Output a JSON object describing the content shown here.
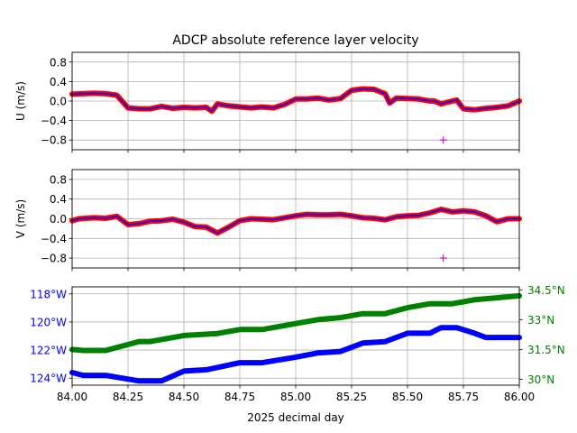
{
  "chart_data": [
    {
      "type": "line",
      "panel": "top",
      "title": "ADCP absolute reference layer velocity",
      "ylabel": "U (m/s)",
      "xlim": [
        84.0,
        86.0
      ],
      "ylim": [
        -1.0,
        1.0
      ],
      "yticks": [
        "0.8",
        "0.4",
        "0.0",
        "−0.4",
        "−0.8"
      ],
      "ytick_values": [
        0.8,
        0.4,
        0.0,
        -0.4,
        -0.8
      ],
      "grid": true,
      "series": [
        {
          "color": "#ff0000",
          "marker": "dot",
          "x": [
            84.0,
            84.05,
            84.1,
            84.15,
            84.2,
            84.25,
            84.3,
            84.35,
            84.4,
            84.45,
            84.5,
            84.55,
            84.6,
            84.625,
            84.65,
            84.7,
            84.75,
            84.8,
            84.85,
            84.9,
            84.95,
            85.0,
            85.05,
            85.1,
            85.15,
            85.2,
            85.25,
            85.3,
            85.35,
            85.4,
            85.42,
            85.45,
            85.5,
            85.55,
            85.6,
            85.62,
            85.65,
            85.7,
            85.72,
            85.75,
            85.8,
            85.85,
            85.9,
            85.95,
            86.0
          ],
          "y": [
            0.14,
            0.15,
            0.16,
            0.15,
            0.12,
            -0.14,
            -0.16,
            -0.16,
            -0.11,
            -0.15,
            -0.13,
            -0.14,
            -0.13,
            -0.21,
            -0.06,
            -0.1,
            -0.12,
            -0.14,
            -0.12,
            -0.14,
            -0.07,
            0.04,
            0.04,
            0.06,
            0.02,
            0.05,
            0.22,
            0.25,
            0.24,
            0.15,
            -0.04,
            0.06,
            0.05,
            0.04,
            0.0,
            0.0,
            -0.06,
            0.0,
            0.02,
            -0.16,
            -0.18,
            -0.15,
            -0.13,
            -0.1,
            0.0
          ]
        },
        {
          "color": "#0000ff",
          "marker": "line",
          "x": [
            84.0,
            84.05,
            84.1,
            84.15,
            84.2,
            84.25,
            84.3,
            84.35,
            84.4,
            84.45,
            84.5,
            84.55,
            84.6,
            84.625,
            84.65,
            84.7,
            84.75,
            84.8,
            84.85,
            84.9,
            84.95,
            85.0,
            85.05,
            85.1,
            85.15,
            85.2,
            85.25,
            85.3,
            85.35,
            85.4,
            85.42,
            85.45,
            85.5,
            85.55,
            85.6,
            85.62,
            85.65,
            85.7,
            85.72,
            85.75,
            85.8,
            85.85,
            85.9,
            85.95,
            86.0
          ],
          "y": [
            0.14,
            0.15,
            0.16,
            0.15,
            0.12,
            -0.14,
            -0.16,
            -0.16,
            -0.11,
            -0.15,
            -0.13,
            -0.14,
            -0.13,
            -0.21,
            -0.06,
            -0.1,
            -0.12,
            -0.14,
            -0.12,
            -0.14,
            -0.07,
            0.04,
            0.04,
            0.06,
            0.02,
            0.05,
            0.22,
            0.25,
            0.24,
            0.15,
            -0.04,
            0.06,
            0.05,
            0.04,
            0.0,
            0.0,
            -0.06,
            0.0,
            0.02,
            -0.16,
            -0.18,
            -0.15,
            -0.13,
            -0.1,
            0.0
          ]
        },
        {
          "color": "#cc00cc",
          "marker": "plus",
          "x": [
            85.66
          ],
          "y": [
            -0.8
          ]
        }
      ]
    },
    {
      "type": "line",
      "panel": "middle",
      "ylabel": "V (m/s)",
      "xlim": [
        84.0,
        86.0
      ],
      "ylim": [
        -1.0,
        1.0
      ],
      "yticks": [
        "0.8",
        "0.4",
        "0.0",
        "−0.4",
        "−0.8"
      ],
      "ytick_values": [
        0.8,
        0.4,
        0.0,
        -0.4,
        -0.8
      ],
      "grid": true,
      "series": [
        {
          "color": "#ff0000",
          "marker": "dot",
          "x": [
            84.0,
            84.03,
            84.1,
            84.15,
            84.2,
            84.25,
            84.3,
            84.35,
            84.4,
            84.45,
            84.5,
            84.55,
            84.6,
            84.65,
            84.7,
            84.75,
            84.8,
            84.85,
            84.9,
            84.95,
            85.0,
            85.05,
            85.1,
            85.15,
            85.2,
            85.25,
            85.3,
            85.35,
            85.4,
            85.45,
            85.5,
            85.55,
            85.6,
            85.65,
            85.7,
            85.75,
            85.8,
            85.85,
            85.9,
            85.95,
            86.0
          ],
          "y": [
            -0.04,
            0.0,
            0.02,
            0.01,
            0.05,
            -0.12,
            -0.1,
            -0.05,
            -0.04,
            -0.01,
            -0.07,
            -0.16,
            -0.17,
            -0.29,
            -0.17,
            -0.04,
            0.0,
            -0.01,
            -0.02,
            0.02,
            0.06,
            0.09,
            0.08,
            0.08,
            0.09,
            0.06,
            0.02,
            0.01,
            -0.02,
            0.04,
            0.06,
            0.07,
            0.12,
            0.19,
            0.14,
            0.16,
            0.14,
            0.06,
            -0.06,
            0.0,
            0.0
          ]
        },
        {
          "color": "#0000ff",
          "marker": "line",
          "x": [
            84.0,
            84.03,
            84.1,
            84.15,
            84.2,
            84.25,
            84.3,
            84.35,
            84.4,
            84.45,
            84.5,
            84.55,
            84.6,
            84.65,
            84.7,
            84.75,
            84.8,
            84.85,
            84.9,
            84.95,
            85.0,
            85.05,
            85.1,
            85.15,
            85.2,
            85.25,
            85.3,
            85.35,
            85.4,
            85.45,
            85.5,
            85.55,
            85.6,
            85.65,
            85.7,
            85.75,
            85.8,
            85.85,
            85.9,
            85.95,
            86.0
          ],
          "y": [
            -0.04,
            0.0,
            0.02,
            0.01,
            0.05,
            -0.12,
            -0.1,
            -0.05,
            -0.04,
            -0.01,
            -0.07,
            -0.16,
            -0.17,
            -0.29,
            -0.17,
            -0.04,
            0.0,
            -0.01,
            -0.02,
            0.02,
            0.06,
            0.09,
            0.08,
            0.08,
            0.09,
            0.06,
            0.02,
            0.01,
            -0.02,
            0.04,
            0.06,
            0.07,
            0.12,
            0.19,
            0.14,
            0.16,
            0.14,
            0.06,
            -0.06,
            0.0,
            0.0
          ]
        },
        {
          "color": "#cc00cc",
          "marker": "plus",
          "x": [
            85.66
          ],
          "y": [
            -0.8
          ]
        }
      ]
    },
    {
      "type": "line",
      "panel": "bottom",
      "xlabel": "2025 decimal day",
      "xlim": [
        84.0,
        86.0
      ],
      "xticks": [
        "84.00",
        "84.25",
        "84.50",
        "84.75",
        "85.00",
        "85.25",
        "85.50",
        "85.75",
        "86.00"
      ],
      "xtick_values": [
        84.0,
        84.25,
        84.5,
        84.75,
        85.0,
        85.25,
        85.5,
        85.75,
        86.0
      ],
      "grid": true,
      "left_axis": {
        "color": "#0000ff",
        "ylim": [
          -124.5,
          -117.5
        ],
        "yticks": [
          "118°W",
          "120°W",
          "122°W",
          "124°W"
        ],
        "ytick_values": [
          -118,
          -120,
          -122,
          -124
        ]
      },
      "right_axis": {
        "color": "#008000",
        "ylim": [
          29.7,
          34.65
        ],
        "yticks": [
          "34.5°N",
          "33°N",
          "31.5°N",
          "30°N"
        ],
        "ytick_values": [
          34.5,
          33.0,
          31.5,
          30.0
        ]
      },
      "series": [
        {
          "axis": "left",
          "color": "#0000ff",
          "marker": "dot",
          "x": [
            84.0,
            84.05,
            84.15,
            84.3,
            84.4,
            84.5,
            84.6,
            84.75,
            84.85,
            85.0,
            85.1,
            85.2,
            85.3,
            85.4,
            85.5,
            85.6,
            85.65,
            85.72,
            85.8,
            85.85,
            85.9,
            86.0
          ],
          "y": [
            -123.6,
            -123.8,
            -123.8,
            -124.2,
            -124.2,
            -123.5,
            -123.4,
            -122.9,
            -122.9,
            -122.5,
            -122.2,
            -122.1,
            -121.5,
            -121.4,
            -120.8,
            -120.8,
            -120.4,
            -120.4,
            -120.8,
            -121.1,
            -121.1,
            -121.1
          ]
        },
        {
          "axis": "right",
          "color": "#008000",
          "marker": "dot",
          "x": [
            84.0,
            84.05,
            84.15,
            84.2,
            84.3,
            84.35,
            84.45,
            84.5,
            84.65,
            84.75,
            84.85,
            85.0,
            85.1,
            85.2,
            85.3,
            85.4,
            85.5,
            85.6,
            85.7,
            85.8,
            85.9,
            86.0
          ],
          "y": [
            31.5,
            31.45,
            31.45,
            31.6,
            31.9,
            31.9,
            32.1,
            32.2,
            32.3,
            32.5,
            32.5,
            32.8,
            33.0,
            33.1,
            33.3,
            33.3,
            33.6,
            33.8,
            33.8,
            34.0,
            34.1,
            34.2
          ]
        }
      ]
    }
  ]
}
